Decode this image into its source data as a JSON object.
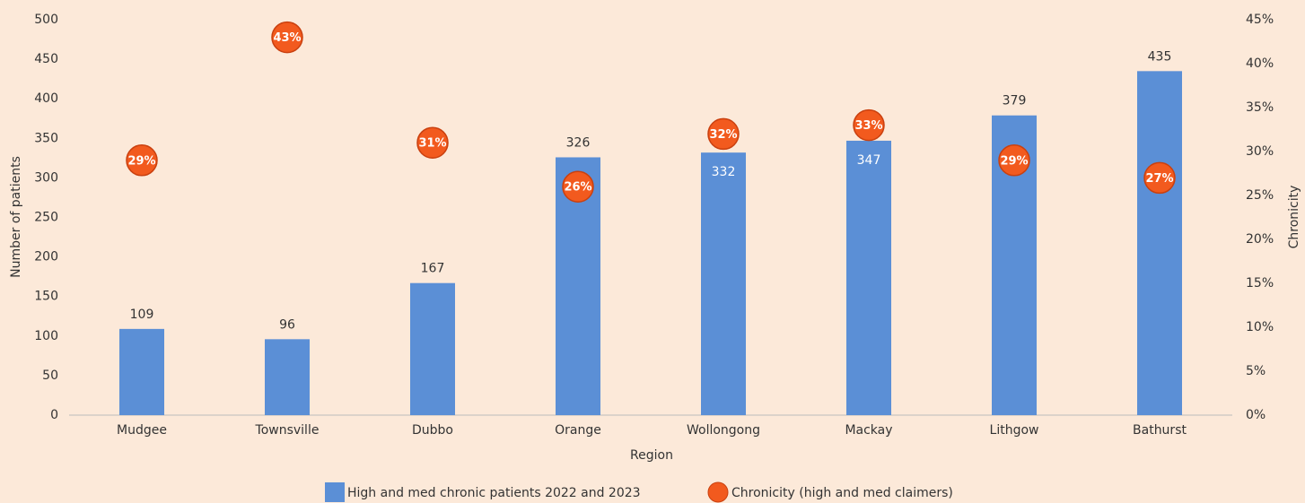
{
  "chart_data": {
    "type": "bar",
    "x_label": "Region",
    "y_label": "Number of patients",
    "y2_label": "Chronicity",
    "categories": [
      "Mudgee",
      "Townsville",
      "Dubbo",
      "Orange",
      "Wollongong",
      "Mackay",
      "Lithgow",
      "Bathurst"
    ],
    "series": [
      {
        "name": "High and med chronic patients 2022 and 2023",
        "type": "bar",
        "color": "#5b8fd6",
        "values": [
          109,
          96,
          167,
          326,
          332,
          347,
          379,
          435
        ]
      },
      {
        "name": "Chronicity (high and med claimers)",
        "type": "scatter",
        "axis": "y2",
        "color": "#f25a1e",
        "values": [
          29,
          43,
          31,
          26,
          32,
          33,
          29,
          27
        ],
        "value_labels": [
          "29%",
          "43%",
          "31%",
          "26%",
          "32%",
          "33%",
          "29%",
          "27%"
        ]
      }
    ],
    "ylim": [
      0,
      500
    ],
    "yticks": [
      0,
      50,
      100,
      150,
      200,
      250,
      300,
      350,
      400,
      450,
      500
    ],
    "y2lim": [
      0,
      45
    ],
    "y2ticks": [
      {
        "value": 0,
        "label": "0%"
      },
      {
        "value": 5,
        "label": "5%"
      },
      {
        "value": 10,
        "label": "10%"
      },
      {
        "value": 15,
        "label": "15%"
      },
      {
        "value": 20,
        "label": "20%"
      },
      {
        "value": 25,
        "label": "25%"
      },
      {
        "value": 30,
        "label": "30%"
      },
      {
        "value": 35,
        "label": "35%"
      },
      {
        "value": 40,
        "label": "40%"
      },
      {
        "value": 45,
        "label": "45%"
      }
    ],
    "legend": "bottom"
  }
}
